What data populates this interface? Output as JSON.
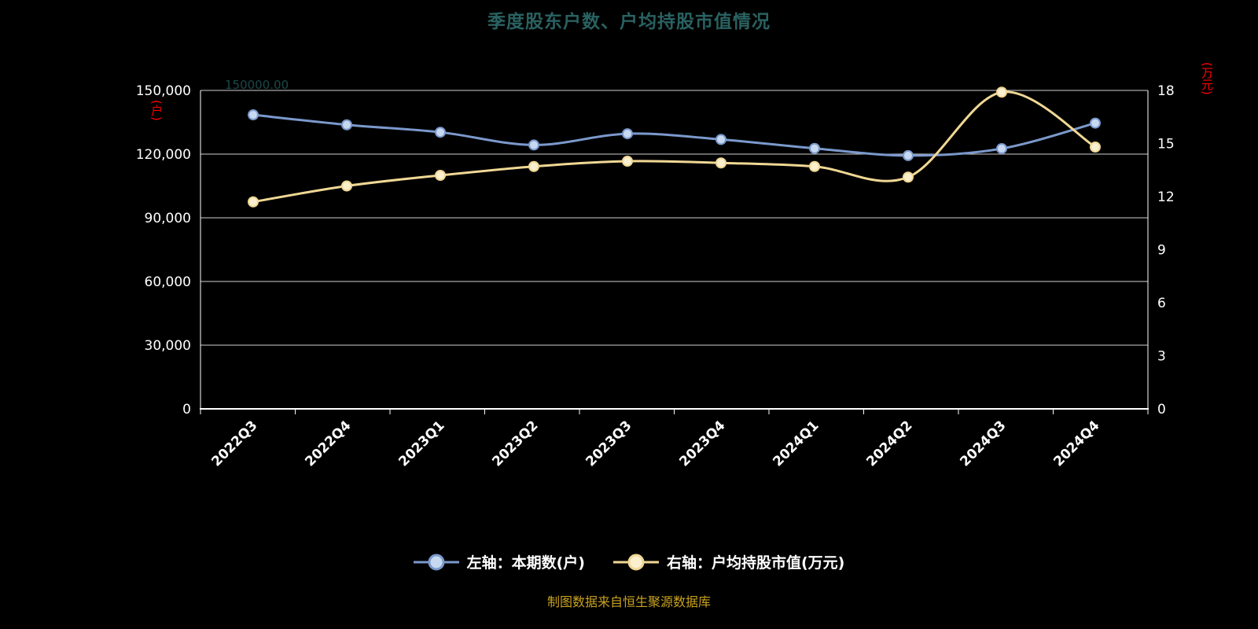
{
  "title": "季度股东户数、户均持股市值情况",
  "corner_annotation": "150000.00",
  "source_note": "制图数据来自恒生聚源数据库",
  "colors": {
    "bg": "#000000",
    "title": "#2a6161",
    "corner": "#1c4848",
    "unit": "#ff0000",
    "axis_text": "#ffffff",
    "grid": "#cfcfcf",
    "axis_line": "#ffffff",
    "source": "#c9a21f",
    "blue_series": "#7b99cc",
    "blue_marker_fill": "#c7d9f0",
    "yellow_series": "#f0d894",
    "yellow_marker_fill": "#faf0d0"
  },
  "chart_data": {
    "type": "line",
    "title": "季度股东户数、户均持股市值情况",
    "categories": [
      "2022Q3",
      "2022Q4",
      "2023Q1",
      "2023Q2",
      "2023Q3",
      "2023Q4",
      "2024Q1",
      "2024Q2",
      "2024Q3",
      "2024Q4"
    ],
    "series": [
      {
        "name": "左轴：本期数(户)",
        "axis": "left",
        "color": "#7b99cc",
        "marker_fill": "#c7d9f0",
        "values": [
          138500,
          133800,
          130300,
          124300,
          129600,
          126900,
          122700,
          119300,
          122600,
          134600
        ]
      },
      {
        "name": "右轴：户均持股市值(万元)",
        "axis": "right",
        "color": "#f0d894",
        "marker_fill": "#faf0d0",
        "values": [
          11.7,
          12.6,
          13.2,
          13.7,
          14.0,
          13.9,
          13.7,
          13.1,
          17.9,
          14.8
        ]
      }
    ],
    "left_axis": {
      "unit": "(户)",
      "min": 0,
      "max": 150000,
      "tick_step": 30000,
      "tick_labels": [
        "0",
        "30,000",
        "60,000",
        "90,000",
        "120,000",
        "150,000"
      ]
    },
    "right_axis": {
      "unit": "(万元)",
      "min": 0,
      "max": 18,
      "tick_step": 3,
      "tick_labels": [
        "0",
        "3",
        "6",
        "9",
        "12",
        "15",
        "18"
      ]
    },
    "grid": true,
    "legend_position": "bottom",
    "smooth": true
  }
}
